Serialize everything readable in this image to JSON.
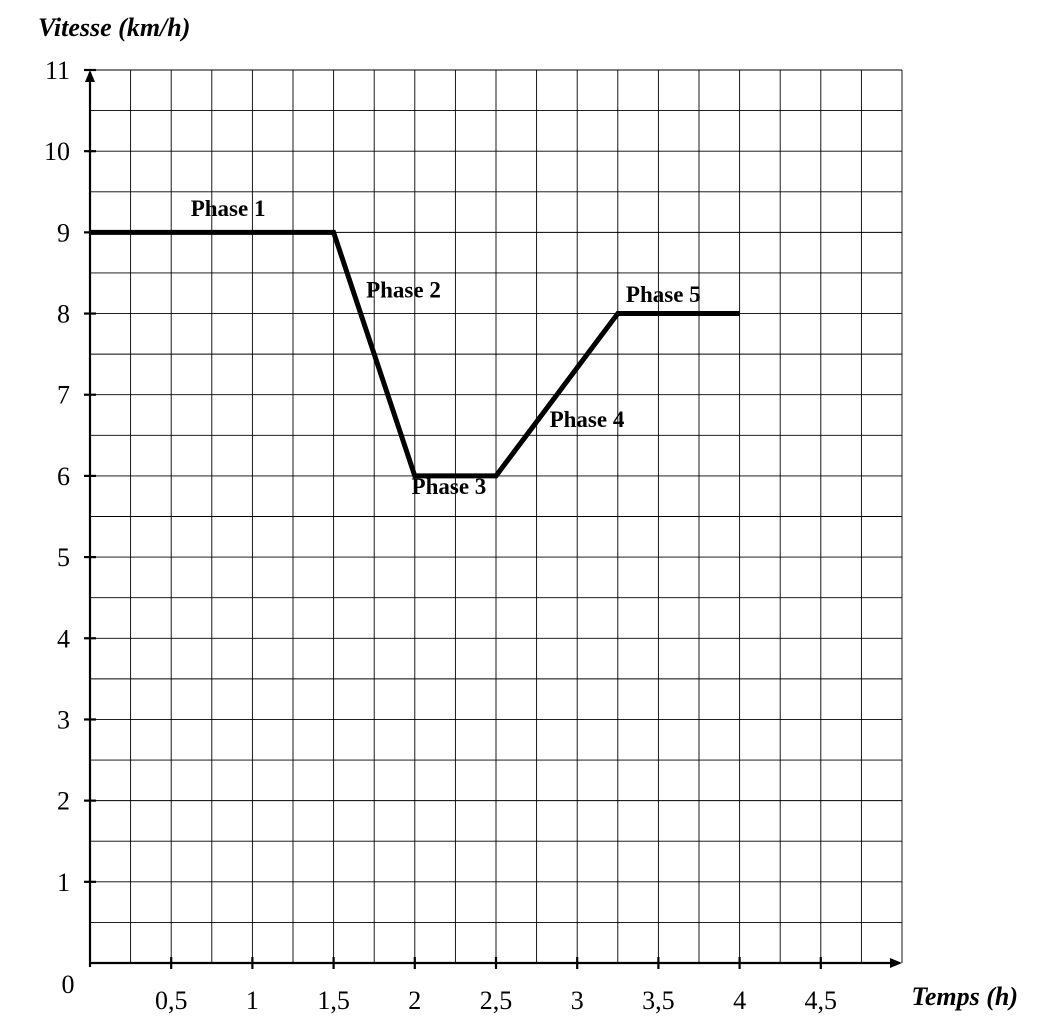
{
  "chart_data": {
    "type": "line",
    "ylabel": "Vitesse (km/h)",
    "xlabel": "Temps (h)",
    "xlim": [
      0,
      5
    ],
    "ylim": [
      0,
      11
    ],
    "grid": true,
    "x_origin_label": "0",
    "x_ticks": [
      {
        "value": 0.5,
        "label": "0,5"
      },
      {
        "value": 1,
        "label": "1"
      },
      {
        "value": 1.5,
        "label": "1,5"
      },
      {
        "value": 2,
        "label": "2"
      },
      {
        "value": 2.5,
        "label": "2,5"
      },
      {
        "value": 3,
        "label": "3"
      },
      {
        "value": 3.5,
        "label": "3,5"
      },
      {
        "value": 4,
        "label": "4"
      },
      {
        "value": 4.5,
        "label": "4,5"
      }
    ],
    "y_ticks": [
      {
        "value": 1,
        "label": "1"
      },
      {
        "value": 2,
        "label": "2"
      },
      {
        "value": 3,
        "label": "3"
      },
      {
        "value": 4,
        "label": "4"
      },
      {
        "value": 5,
        "label": "5"
      },
      {
        "value": 6,
        "label": "6"
      },
      {
        "value": 7,
        "label": "7"
      },
      {
        "value": 8,
        "label": "8"
      },
      {
        "value": 9,
        "label": "9"
      },
      {
        "value": 10,
        "label": "10"
      },
      {
        "value": 11,
        "label": "11"
      }
    ],
    "series": [
      {
        "x": [
          0,
          1.5,
          2,
          2.5,
          3.25,
          4
        ],
        "y": [
          9,
          9,
          6,
          6,
          8,
          8
        ]
      }
    ],
    "annotations": [
      {
        "text": "Phase 1",
        "x": 0.62,
        "y": 9.2
      },
      {
        "text": "Phase 2",
        "x": 1.7,
        "y": 8.2
      },
      {
        "text": "Phase 3",
        "x": 1.98,
        "y": 5.78
      },
      {
        "text": "Phase 4",
        "x": 2.83,
        "y": 6.6
      },
      {
        "text": "Phase 5",
        "x": 3.3,
        "y": 8.14
      }
    ]
  }
}
